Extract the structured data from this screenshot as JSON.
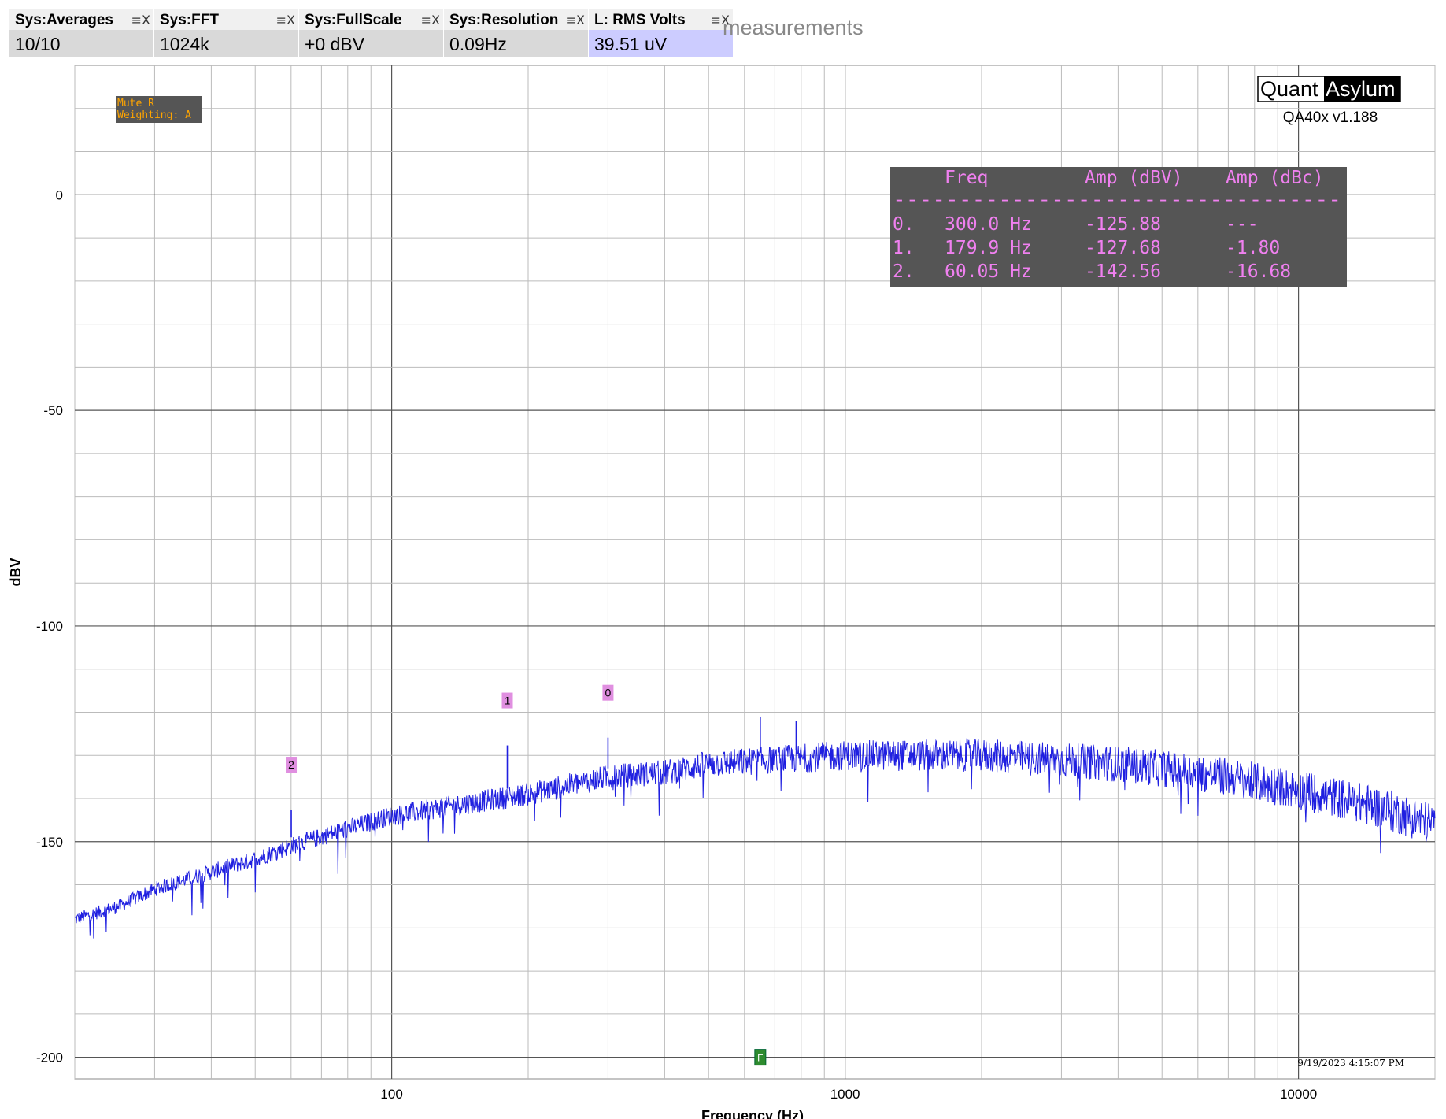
{
  "meters": [
    {
      "title": "Sys:Averages",
      "value": "10/10",
      "highlight": false
    },
    {
      "title": "Sys:FFT",
      "value": "1024k",
      "highlight": false
    },
    {
      "title": "Sys:FullScale",
      "value": "+0 dBV",
      "highlight": false
    },
    {
      "title": "Sys:Resolution",
      "value": "0.09Hz",
      "highlight": false
    },
    {
      "title": "L: RMS Volts",
      "value": "39.51 uV",
      "highlight": true
    }
  ],
  "meter_controls": "≡X",
  "background_text": "measurements",
  "info_box": [
    "Mute R",
    "Weighting: A"
  ],
  "logo": {
    "left": "Quant",
    "right": "Asylum",
    "version": "QA40x v1.188"
  },
  "peak_table": {
    "headers": [
      "Freq",
      "Amp (dBV)",
      "Amp (dBc)"
    ],
    "separator": "----------------------------------",
    "rows": [
      [
        "0.",
        "300.0 Hz",
        "-125.88",
        "---"
      ],
      [
        "1.",
        "179.9 Hz",
        "-127.68",
        "-1.80"
      ],
      [
        "2.",
        "60.05 Hz",
        "-142.56",
        "-16.68"
      ]
    ]
  },
  "timestamp": "9/19/2023 4:15:07 PM",
  "colors": {
    "trace": "#1f1fe0",
    "marker": "#e08fe0",
    "table_bg": "#555555",
    "table_text": "#f080f0",
    "info_text": "#ffa500",
    "flag": "#2e8b2e"
  },
  "chart_data": {
    "type": "line",
    "xlabel": "Frequency (Hz)",
    "ylabel": "dBV",
    "x_scale": "log",
    "xlim": [
      20,
      20000
    ],
    "ylim": [
      -205,
      30
    ],
    "x_ticks": [
      100,
      1000,
      10000
    ],
    "x_tick_labels": [
      "100",
      "1000",
      "10000"
    ],
    "y_ticks": [
      0,
      -50,
      -100,
      -150,
      -200
    ],
    "y_tick_labels": [
      "0",
      "-50",
      "-100",
      "-150",
      "-200"
    ],
    "grid": true,
    "series": [
      {
        "x": [
          20,
          25,
          30,
          40,
          50,
          60,
          80,
          100,
          150,
          200,
          300,
          400,
          500,
          700,
          1000,
          1500,
          2000,
          3000,
          4000,
          5000,
          7000,
          10000,
          15000,
          20000
        ],
        "y": [
          -168,
          -165,
          -161,
          -157,
          -154,
          -151,
          -147,
          -144,
          -141,
          -139,
          -135,
          -134,
          -132,
          -131,
          -130,
          -130,
          -130,
          -131,
          -132,
          -133,
          -135,
          -138,
          -142,
          -146
        ]
      }
    ],
    "spikes": [
      {
        "x": 60.05,
        "y": -142.56
      },
      {
        "x": 179.9,
        "y": -127.68
      },
      {
        "x": 300.0,
        "y": -125.88
      },
      {
        "x": 650,
        "y": -121
      },
      {
        "x": 780,
        "y": -122
      }
    ],
    "markers": [
      {
        "label": "0",
        "x": 300.0
      },
      {
        "label": "1",
        "x": 179.9
      },
      {
        "label": "2",
        "x": 60.05
      }
    ],
    "flag": {
      "label": "F",
      "x": 650,
      "y": -200
    }
  }
}
